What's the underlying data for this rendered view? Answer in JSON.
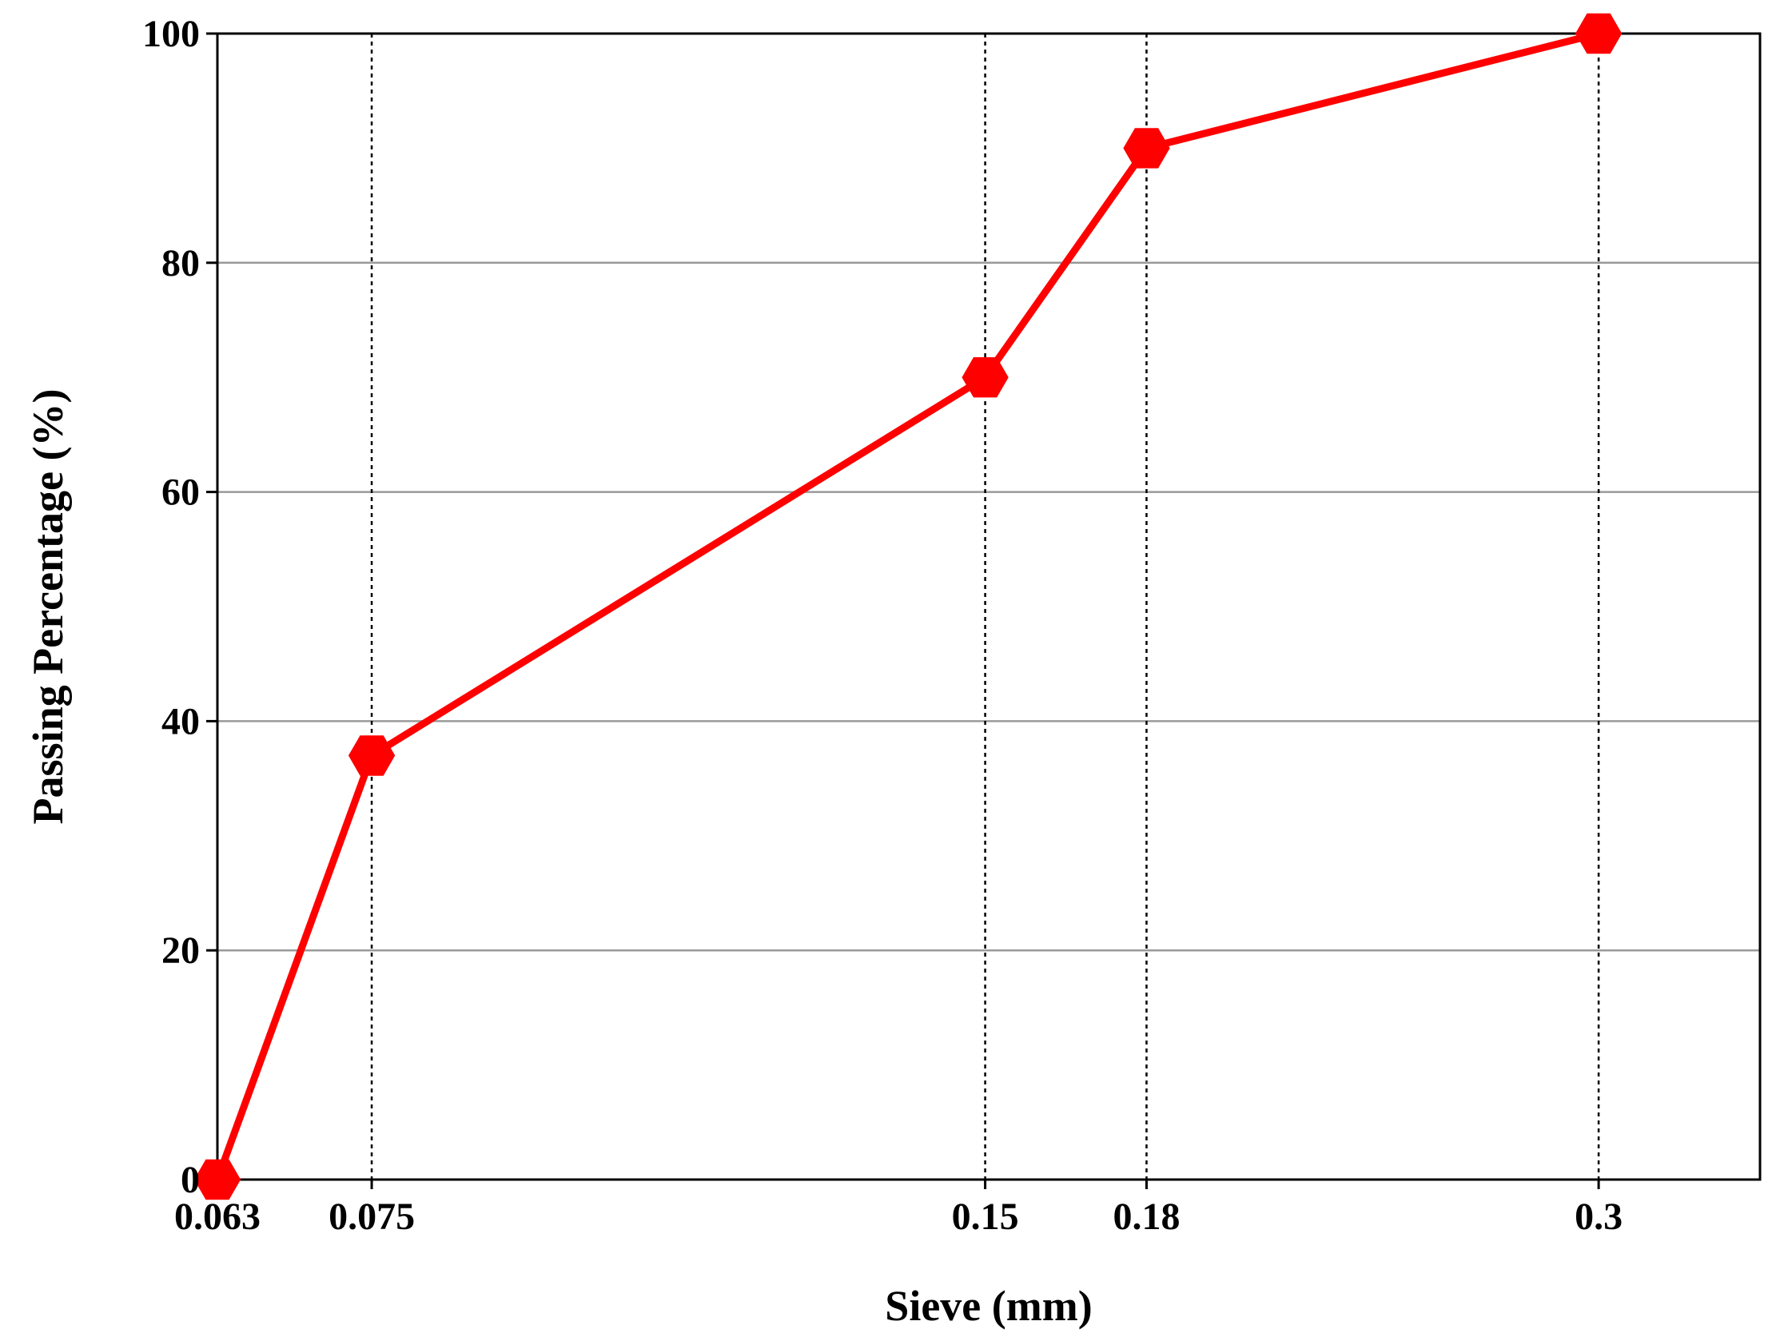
{
  "chart_data": {
    "type": "line",
    "title": "",
    "xlabel": "Sieve (mm)",
    "ylabel": "Passing Percentage (%)",
    "x_tick_labels": [
      "0.063",
      "0.075",
      "0.15",
      "0.18",
      "0.3"
    ],
    "y_ticks": [
      0,
      20,
      40,
      60,
      80,
      100
    ],
    "ylim": [
      0,
      100
    ],
    "x_scale": "log",
    "xlim": [
      0.063,
      0.36
    ],
    "grid": {
      "horizontal": "solid gray",
      "vertical": "dotted black at data points"
    },
    "legend": "none",
    "series": [
      {
        "x": [
          0.063,
          0.075,
          0.15,
          0.18,
          0.3
        ],
        "y": [
          0,
          37,
          70,
          90,
          100
        ],
        "color": "#ff0000",
        "marker": "hexagon"
      }
    ]
  }
}
